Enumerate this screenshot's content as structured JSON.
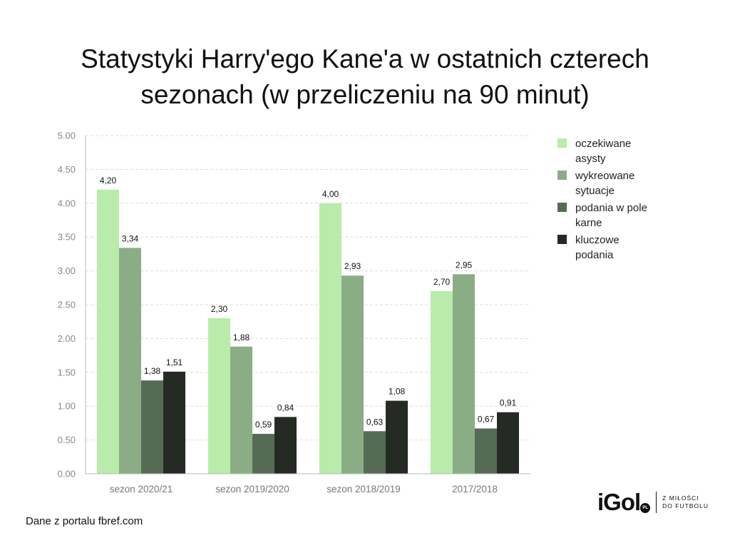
{
  "title": {
    "line1": "Statystyki Harry'ego Kane'a w ostatnich czterech",
    "line2": "sezonach (w przeliczeniu na 90 minut)"
  },
  "source": "Dane z portalu fbref.com",
  "brand": {
    "logo": "iGol",
    "badge": "PL",
    "tagline_line1": "Z MIŁOŚCI",
    "tagline_line2": "DO FUTBOLU"
  },
  "chart_data": {
    "type": "bar",
    "title": "Statystyki Harry'ego Kane'a w ostatnich czterech sezonach (w przeliczeniu na 90 minut)",
    "xlabel": "",
    "ylabel": "",
    "ylim": [
      0,
      5
    ],
    "yticks": [
      "0.00",
      "0.50",
      "1.00",
      "1.50",
      "2.00",
      "2.50",
      "3.00",
      "3.50",
      "4.00",
      "4.50",
      "5.00"
    ],
    "ytick_values": [
      0,
      0.5,
      1,
      1.5,
      2,
      2.5,
      3,
      3.5,
      4,
      4.5,
      5
    ],
    "grid": true,
    "legend_position": "right",
    "categories": [
      "sezon 2020/21",
      "sezon 2019/2020",
      "sezon 2018/2019",
      "2017/2018"
    ],
    "series": [
      {
        "name": "oczekiwane asysty",
        "legend_lines": [
          "oczekiwane",
          "asysty"
        ],
        "color": "#b9ebaa",
        "values": [
          4.2,
          2.3,
          4.0,
          2.7
        ],
        "labels": [
          "4,20",
          "2,30",
          "4,00",
          "2,70"
        ]
      },
      {
        "name": "wykreowane sytuacje",
        "legend_lines": [
          "wykreowane",
          "sytuacje"
        ],
        "color": "#8aad85",
        "values": [
          3.34,
          1.88,
          2.93,
          2.95
        ],
        "labels": [
          "3,34",
          "1,88",
          "2,93",
          "2,95"
        ]
      },
      {
        "name": "podania w pole karne",
        "legend_lines": [
          "podania w pole",
          "karne"
        ],
        "color": "#566b53",
        "values": [
          1.38,
          0.59,
          0.63,
          0.67
        ],
        "labels": [
          "1,38",
          "0,59",
          "0,63",
          "0,67"
        ]
      },
      {
        "name": "kluczowe podania",
        "legend_lines": [
          "kluczowe",
          "podania"
        ],
        "color": "#252a25",
        "values": [
          1.51,
          0.84,
          1.08,
          0.91
        ],
        "labels": [
          "1,51",
          "0,84",
          "1,08",
          "0,91"
        ]
      }
    ]
  }
}
